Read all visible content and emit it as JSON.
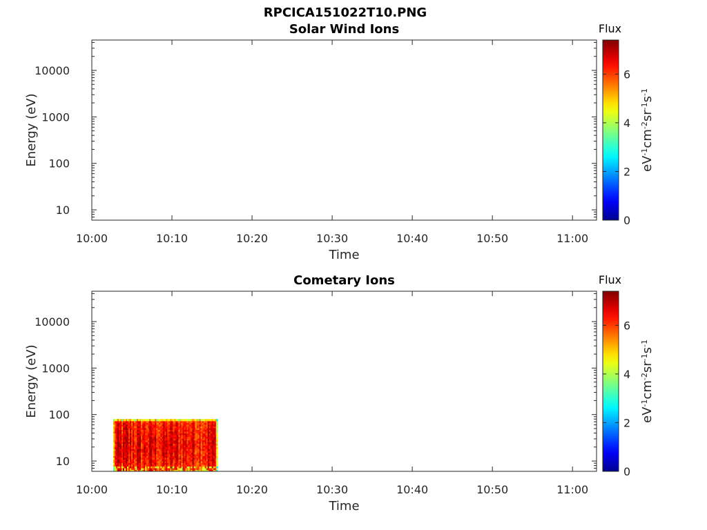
{
  "figure_title": "RPCICA151022T10.PNG",
  "colors": {
    "jet": [
      "#00008f",
      "#0000ff",
      "#00ffff",
      "#ffff00",
      "#ff0000",
      "#800000"
    ]
  },
  "chart_data": [
    {
      "type": "heatmap",
      "title": "Solar Wind Ions",
      "xlabel": "Time",
      "ylabel": "Energy (eV)",
      "y_scale": "log",
      "xlim": [
        "10:00",
        "11:03"
      ],
      "ylim": [
        6,
        45000
      ],
      "x_ticks": [
        "10:00",
        "10:10",
        "10:20",
        "10:30",
        "10:40",
        "10:50",
        "11:00"
      ],
      "y_ticks": [
        10,
        100,
        1000,
        10000
      ],
      "y_tick_labels": [
        "10",
        "100",
        "1000",
        "10000"
      ],
      "colorbar": {
        "title": "Flux",
        "ticks": [
          0,
          2,
          4,
          6
        ],
        "tick_labels": [
          "0",
          "2",
          "4",
          "6"
        ],
        "range": [
          0,
          7.4
        ],
        "label_parts": [
          {
            "t": "eV",
            "sup": false
          },
          {
            "t": "-1",
            "sup": true
          },
          {
            "t": "cm",
            "sup": false
          },
          {
            "t": "-2",
            "sup": true
          },
          {
            "t": "sr",
            "sup": false
          },
          {
            "t": "-1",
            "sup": true
          },
          {
            "t": "s",
            "sup": false
          },
          {
            "t": "-1",
            "sup": true
          }
        ]
      },
      "data": null
    },
    {
      "type": "heatmap",
      "title": "Cometary Ions",
      "xlabel": "Time",
      "ylabel": "Energy (eV)",
      "y_scale": "log",
      "xlim": [
        "10:00",
        "11:03"
      ],
      "ylim": [
        6,
        45000
      ],
      "x_ticks": [
        "10:00",
        "10:10",
        "10:20",
        "10:30",
        "10:40",
        "10:50",
        "11:00"
      ],
      "y_ticks": [
        10,
        100,
        1000,
        10000
      ],
      "y_tick_labels": [
        "10",
        "100",
        "1000",
        "10000"
      ],
      "colorbar": {
        "title": "Flux",
        "ticks": [
          0,
          2,
          4,
          6
        ],
        "tick_labels": [
          "0",
          "2",
          "4",
          "6"
        ],
        "range": [
          0,
          7.4
        ],
        "label_parts": [
          {
            "t": "eV",
            "sup": false
          },
          {
            "t": "-1",
            "sup": true
          },
          {
            "t": "cm",
            "sup": false
          },
          {
            "t": "-2",
            "sup": true
          },
          {
            "t": "sr",
            "sup": false
          },
          {
            "t": "-1",
            "sup": true
          },
          {
            "t": "s",
            "sup": false
          },
          {
            "t": "-1",
            "sup": true
          }
        ]
      },
      "data": {
        "time_range": [
          "10:02:40",
          "10:15:40"
        ],
        "energy_range": [
          6,
          80
        ],
        "flux_range": [
          2.5,
          7.2
        ],
        "flux_typical": [
          5.0,
          6.5
        ]
      }
    }
  ]
}
